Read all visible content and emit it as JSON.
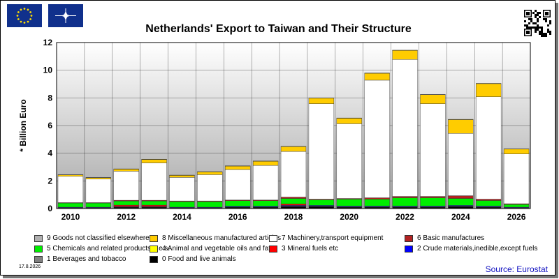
{
  "title": "Netherlands' Export to Taiwan and Their Structure",
  "date_stamp": "17.8.2026",
  "source": "Source: Eurostat",
  "icons": {
    "flag_left": "eu-flag-icon",
    "flag_right": "nato-flag-icon",
    "qr": "qr-code-icon"
  },
  "chart_data": {
    "type": "bar",
    "stacked": true,
    "ylabel": "* Billion Euro",
    "ylim": [
      0,
      12
    ],
    "yticks": [
      0,
      2,
      4,
      6,
      8,
      10,
      12
    ],
    "grid": true,
    "legend_position": "bottom",
    "categories": [
      "2010",
      "2011",
      "2012",
      "2013",
      "2014",
      "2015",
      "2016",
      "2017",
      "2018",
      "2019",
      "2020",
      "2021",
      "2022",
      "2023",
      "2024",
      "2025",
      "2026"
    ],
    "xtick_labels": [
      "2010",
      "2012",
      "2014",
      "2016",
      "2018",
      "2020",
      "2022",
      "2024",
      "2026"
    ],
    "series": [
      {
        "name": "0 Food and live animals",
        "color": "#000000",
        "values": [
          0.05,
          0.05,
          0.1,
          0.1,
          0.05,
          0.05,
          0.1,
          0.1,
          0.15,
          0.15,
          0.1,
          0.1,
          0.1,
          0.1,
          0.15,
          0.1,
          0.05
        ]
      },
      {
        "name": "1 Beverages and tobacco",
        "color": "#808080",
        "values": [
          0.02,
          0.02,
          0.02,
          0.02,
          0.02,
          0.02,
          0.02,
          0.02,
          0.03,
          0.03,
          0.03,
          0.03,
          0.03,
          0.03,
          0.03,
          0.03,
          0.02
        ]
      },
      {
        "name": "2 Crude materials,inedible,except fuels",
        "color": "#0000ff",
        "values": [
          0.03,
          0.03,
          0.03,
          0.03,
          0.03,
          0.03,
          0.05,
          0.05,
          0.05,
          0.05,
          0.05,
          0.05,
          0.05,
          0.05,
          0.05,
          0.05,
          0.03
        ]
      },
      {
        "name": "3 Mineral fuels etc",
        "color": "#ff0000",
        "values": [
          0.0,
          0.0,
          0.1,
          0.1,
          0.0,
          0.0,
          0.0,
          0.0,
          0.1,
          0.0,
          0.0,
          0.0,
          0.0,
          0.0,
          0.0,
          0.0,
          0.0
        ]
      },
      {
        "name": "4 Animal and vegetable oils and fats",
        "color": "#ffff00",
        "values": [
          0.0,
          0.0,
          0.0,
          0.0,
          0.0,
          0.0,
          0.0,
          0.0,
          0.0,
          0.0,
          0.0,
          0.0,
          0.0,
          0.0,
          0.0,
          0.0,
          0.0
        ]
      },
      {
        "name": "5 Chemicals and related products,n.e.s.",
        "color": "#00ee00",
        "values": [
          0.3,
          0.3,
          0.3,
          0.3,
          0.4,
          0.4,
          0.4,
          0.4,
          0.4,
          0.4,
          0.5,
          0.5,
          0.6,
          0.6,
          0.5,
          0.4,
          0.2
        ]
      },
      {
        "name": "6 Basic manufactures",
        "color": "#b22222",
        "values": [
          0.03,
          0.03,
          0.05,
          0.05,
          0.05,
          0.05,
          0.05,
          0.05,
          0.1,
          0.05,
          0.05,
          0.1,
          0.1,
          0.1,
          0.2,
          0.1,
          0.05
        ]
      },
      {
        "name": "7 Machinery,transport equipment",
        "color": "#ffffff",
        "values": [
          1.9,
          1.7,
          2.1,
          2.7,
          1.7,
          1.9,
          2.2,
          2.5,
          3.3,
          6.9,
          5.4,
          8.5,
          9.9,
          6.7,
          4.5,
          7.4,
          3.6
        ]
      },
      {
        "name": "8 Miscellaneous manufactured articles",
        "color": "#ffcc00",
        "values": [
          0.1,
          0.1,
          0.15,
          0.25,
          0.15,
          0.2,
          0.25,
          0.3,
          0.35,
          0.4,
          0.4,
          0.5,
          0.65,
          0.65,
          1.0,
          0.95,
          0.35
        ]
      },
      {
        "name": "9 Goods not classified elsewhere",
        "color": "#b0b0b0",
        "values": [
          0.02,
          0.02,
          0.02,
          0.02,
          0.02,
          0.02,
          0.02,
          0.02,
          0.02,
          0.02,
          0.02,
          0.02,
          0.02,
          0.02,
          0.02,
          0.02,
          0.02
        ]
      }
    ]
  }
}
